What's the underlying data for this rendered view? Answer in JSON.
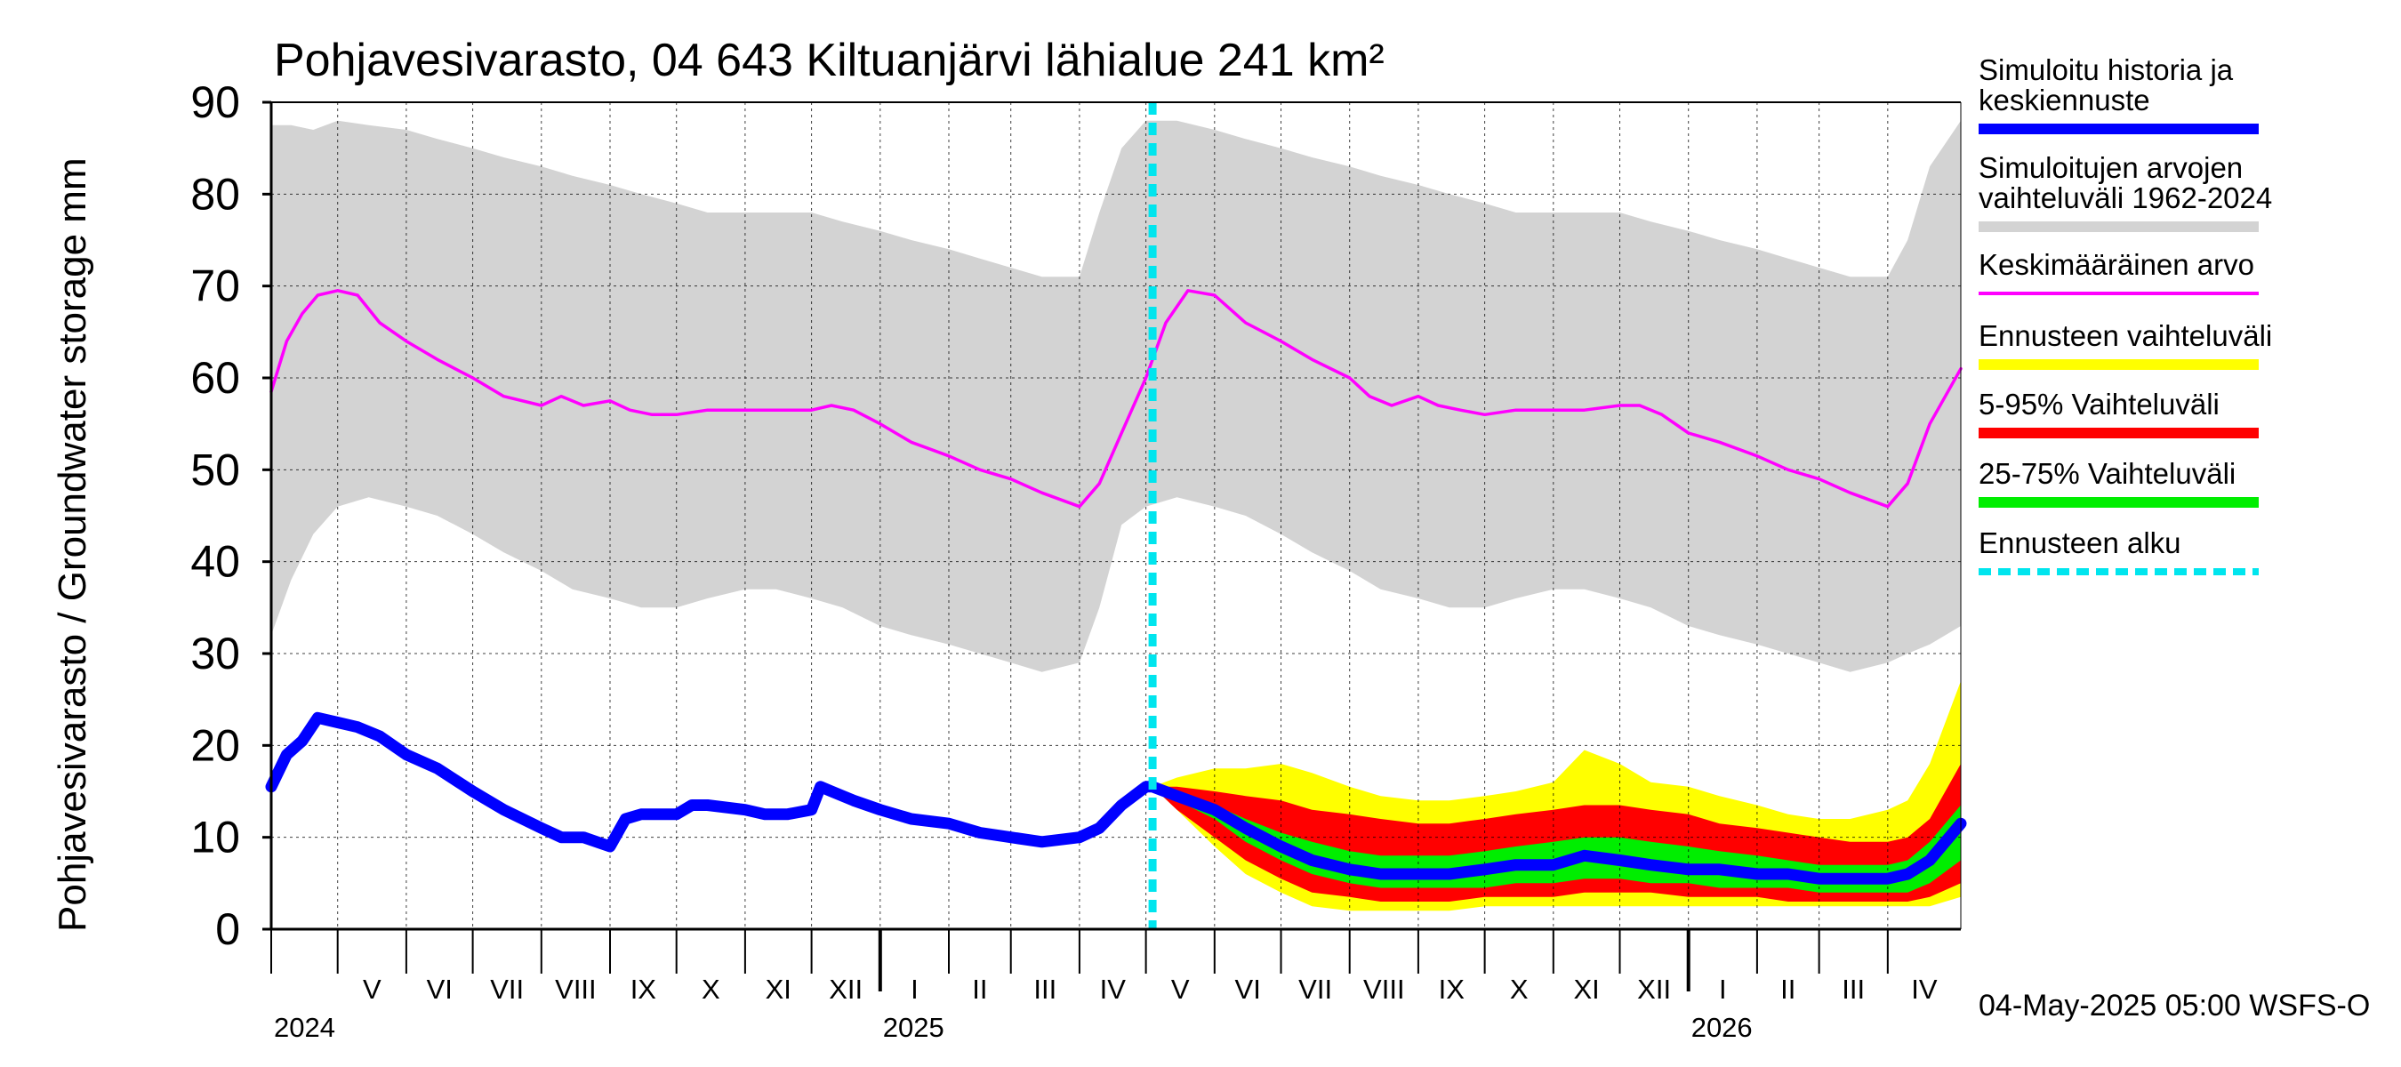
{
  "chart_data": {
    "type": "area",
    "title": "Pohjavesivarasto, 04 643 Kiltuanjärvi lähialue 241 km²",
    "ylabel": "Pohjavesivarasto / Groundwater storage   mm",
    "ylim": [
      0,
      90
    ],
    "yticks": [
      0,
      10,
      20,
      30,
      40,
      50,
      60,
      70,
      80,
      90
    ],
    "xlim": [
      "2024-04-01",
      "2026-05-04"
    ],
    "grid": true,
    "legend_position": "right",
    "forecast_start": "2025-05-04",
    "timestamp_label": "04-May-2025 05:00 WSFS-O",
    "month_labels": [
      {
        "label": "V",
        "date": "2024-05-01"
      },
      {
        "label": "VI",
        "date": "2024-06-01"
      },
      {
        "label": "VII",
        "date": "2024-07-01"
      },
      {
        "label": "VIII",
        "date": "2024-08-01"
      },
      {
        "label": "IX",
        "date": "2024-09-01"
      },
      {
        "label": "X",
        "date": "2024-10-01"
      },
      {
        "label": "XI",
        "date": "2024-11-01"
      },
      {
        "label": "XII",
        "date": "2024-12-01"
      },
      {
        "label": "I",
        "date": "2025-01-01"
      },
      {
        "label": "II",
        "date": "2025-02-01"
      },
      {
        "label": "III",
        "date": "2025-03-01"
      },
      {
        "label": "IV",
        "date": "2025-04-01"
      },
      {
        "label": "V",
        "date": "2025-05-01"
      },
      {
        "label": "VI",
        "date": "2025-06-01"
      },
      {
        "label": "VII",
        "date": "2025-07-01"
      },
      {
        "label": "VIII",
        "date": "2025-08-01"
      },
      {
        "label": "IX",
        "date": "2025-09-01"
      },
      {
        "label": "X",
        "date": "2025-10-01"
      },
      {
        "label": "XI",
        "date": "2025-11-01"
      },
      {
        "label": "XII",
        "date": "2025-12-01"
      },
      {
        "label": "I",
        "date": "2026-01-01"
      },
      {
        "label": "II",
        "date": "2026-02-01"
      },
      {
        "label": "III",
        "date": "2026-03-01"
      },
      {
        "label": "IV",
        "date": "2026-04-01"
      }
    ],
    "year_labels": [
      {
        "label": "2024",
        "date": "2024-04-01"
      },
      {
        "label": "2025",
        "date": "2025-01-01"
      },
      {
        "label": "2026",
        "date": "2026-01-01"
      }
    ],
    "colors": {
      "history": "#0000ff",
      "range": "#d3d3d3",
      "mean": "#ff00ff",
      "forecast_range": "#ffff00",
      "p5_95": "#ff0000",
      "p25_75": "#00ee00",
      "forecast_start": "#00e5ee"
    },
    "legend": [
      {
        "lines": [
          "Simuloitu historia ja",
          "keskiennuste"
        ],
        "color": "#0000ff",
        "style": "thick"
      },
      {
        "lines": [
          "Simuloitujen arvojen",
          "vaihteluväli 1962-2024"
        ],
        "color": "#d3d3d3",
        "style": "thick"
      },
      {
        "lines": [
          "Keskimääräinen arvo"
        ],
        "color": "#ff00ff",
        "style": "thin"
      },
      {
        "lines": [
          "Ennusteen vaihteluväli"
        ],
        "color": "#ffff00",
        "style": "thick"
      },
      {
        "lines": [
          "5-95% Vaihteluväli"
        ],
        "color": "#ff0000",
        "style": "thick"
      },
      {
        "lines": [
          "25-75% Vaihteluväli"
        ],
        "color": "#00ee00",
        "style": "thick"
      },
      {
        "lines": [
          "Ennusteen alku"
        ],
        "color": "#00e5ee",
        "style": "dashed"
      }
    ],
    "series": [
      {
        "name": "Simuloitujen arvojen vaihteluväli 1962-2024",
        "kind": "band",
        "x": [
          "2024-04-01",
          "2024-04-10",
          "2024-04-20",
          "2024-05-01",
          "2024-05-15",
          "2024-06-01",
          "2024-06-15",
          "2024-07-01",
          "2024-07-15",
          "2024-08-01",
          "2024-08-15",
          "2024-09-01",
          "2024-09-15",
          "2024-10-01",
          "2024-10-15",
          "2024-11-01",
          "2024-11-15",
          "2024-12-01",
          "2024-12-15",
          "2025-01-01",
          "2025-01-15",
          "2025-02-01",
          "2025-02-15",
          "2025-03-01",
          "2025-03-15",
          "2025-04-01",
          "2025-04-10",
          "2025-04-20",
          "2025-05-01",
          "2025-05-15",
          "2025-06-01",
          "2025-06-15",
          "2025-07-01",
          "2025-07-15",
          "2025-08-01",
          "2025-08-15",
          "2025-09-01",
          "2025-09-15",
          "2025-10-01",
          "2025-10-15",
          "2025-11-01",
          "2025-11-15",
          "2025-12-01",
          "2025-12-15",
          "2026-01-01",
          "2026-01-15",
          "2026-02-01",
          "2026-02-15",
          "2026-03-01",
          "2026-03-15",
          "2026-04-01",
          "2026-04-10",
          "2026-04-20",
          "2026-05-04"
        ],
        "low": [
          32,
          38,
          43,
          46,
          47,
          46,
          45,
          43,
          41,
          39,
          37,
          36,
          35,
          35,
          36,
          37,
          37,
          36,
          35,
          33,
          32,
          31,
          30,
          29,
          28,
          29,
          35,
          44,
          46,
          47,
          46,
          45,
          43,
          41,
          39,
          37,
          36,
          35,
          35,
          36,
          37,
          37,
          36,
          35,
          33,
          32,
          31,
          30,
          29,
          28,
          29,
          30,
          31,
          33
        ],
        "high": [
          87.5,
          87.5,
          87,
          88,
          87.5,
          87,
          86,
          85,
          84,
          83,
          82,
          81,
          80,
          79,
          78,
          78,
          78,
          78,
          77,
          76,
          75,
          74,
          73,
          72,
          71,
          71,
          78,
          85,
          88,
          88,
          87,
          86,
          85,
          84,
          83,
          82,
          81,
          80,
          79,
          78,
          78,
          78,
          78,
          77,
          76,
          75,
          74,
          73,
          72,
          71,
          71,
          75,
          83,
          88
        ]
      },
      {
        "name": "Keskimääräinen arvo",
        "kind": "line",
        "x": [
          "2024-04-01",
          "2024-04-08",
          "2024-04-15",
          "2024-04-22",
          "2024-05-01",
          "2024-05-10",
          "2024-05-20",
          "2024-06-01",
          "2024-06-15",
          "2024-07-01",
          "2024-07-15",
          "2024-08-01",
          "2024-08-10",
          "2024-08-20",
          "2024-09-01",
          "2024-09-10",
          "2024-09-20",
          "2024-10-01",
          "2024-10-15",
          "2024-11-01",
          "2024-11-15",
          "2024-12-01",
          "2024-12-10",
          "2024-12-20",
          "2025-01-01",
          "2025-01-15",
          "2025-02-01",
          "2025-02-15",
          "2025-03-01",
          "2025-03-15",
          "2025-04-01",
          "2025-04-10",
          "2025-04-20",
          "2025-05-01",
          "2025-05-10",
          "2025-05-20",
          "2025-06-01",
          "2025-06-15",
          "2025-07-01",
          "2025-07-15",
          "2025-08-01",
          "2025-08-10",
          "2025-08-20",
          "2025-09-01",
          "2025-09-10",
          "2025-09-20",
          "2025-10-01",
          "2025-10-15",
          "2025-11-01",
          "2025-11-15",
          "2025-12-01",
          "2025-12-10",
          "2025-12-20",
          "2026-01-01",
          "2026-01-15",
          "2026-02-01",
          "2026-02-15",
          "2026-03-01",
          "2026-03-15",
          "2026-04-01",
          "2026-04-10",
          "2026-04-20",
          "2026-05-04"
        ],
        "values": [
          58.5,
          64,
          67,
          69,
          69.5,
          69,
          66,
          64,
          62,
          60,
          58,
          57,
          58,
          57,
          57.5,
          56.5,
          56,
          56,
          56.5,
          56.5,
          56.5,
          56.5,
          57,
          56.5,
          55,
          53,
          51.5,
          50,
          49,
          47.5,
          46,
          48.5,
          54,
          60,
          66,
          69.5,
          69,
          66,
          64,
          62,
          60,
          58,
          57,
          58,
          57,
          56.5,
          56,
          56.5,
          56.5,
          56.5,
          57,
          57,
          56,
          54,
          53,
          51.5,
          50,
          49,
          47.5,
          46,
          48.5,
          55,
          61
        ]
      },
      {
        "name": "Simuloitu historia ja keskiennuste",
        "kind": "line",
        "x": [
          "2024-04-01",
          "2024-04-08",
          "2024-04-15",
          "2024-04-22",
          "2024-05-01",
          "2024-05-10",
          "2024-05-20",
          "2024-06-01",
          "2024-06-15",
          "2024-07-01",
          "2024-07-15",
          "2024-08-01",
          "2024-08-10",
          "2024-08-20",
          "2024-09-01",
          "2024-09-08",
          "2024-09-15",
          "2024-09-22",
          "2024-10-01",
          "2024-10-08",
          "2024-10-15",
          "2024-11-01",
          "2024-11-10",
          "2024-11-20",
          "2024-12-01",
          "2024-12-05",
          "2024-12-10",
          "2024-12-20",
          "2025-01-01",
          "2025-01-15",
          "2025-02-01",
          "2025-02-15",
          "2025-03-01",
          "2025-03-15",
          "2025-04-01",
          "2025-04-10",
          "2025-04-20",
          "2025-05-01",
          "2025-05-04",
          "2025-05-15",
          "2025-06-01",
          "2025-06-15",
          "2025-07-01",
          "2025-07-15",
          "2025-08-01",
          "2025-08-15",
          "2025-09-01",
          "2025-09-15",
          "2025-10-01",
          "2025-10-15",
          "2025-11-01",
          "2025-11-15",
          "2025-12-01",
          "2025-12-15",
          "2026-01-01",
          "2026-01-15",
          "2026-02-01",
          "2026-02-15",
          "2026-03-01",
          "2026-03-15",
          "2026-04-01",
          "2026-04-10",
          "2026-04-20",
          "2026-05-04"
        ],
        "values": [
          15.5,
          19,
          20.5,
          23,
          22.5,
          22,
          21,
          19,
          17.5,
          15,
          13,
          11,
          10,
          10,
          9,
          12,
          12.5,
          12.5,
          12.5,
          13.5,
          13.5,
          13,
          12.5,
          12.5,
          13,
          15.5,
          15,
          14,
          13,
          12,
          11.5,
          10.5,
          10,
          9.5,
          10,
          11,
          13.5,
          15.5,
          15.5,
          14.5,
          13,
          11,
          9,
          7.5,
          6.5,
          6,
          6,
          6,
          6.5,
          7,
          7,
          8,
          7.5,
          7,
          6.5,
          6.5,
          6,
          6,
          5.5,
          5.5,
          5.5,
          6,
          7.5,
          11.5
        ]
      },
      {
        "name": "Ennusteen vaihteluväli",
        "kind": "band",
        "x": [
          "2025-05-04",
          "2025-05-15",
          "2025-06-01",
          "2025-06-15",
          "2025-07-01",
          "2025-07-15",
          "2025-08-01",
          "2025-08-15",
          "2025-09-01",
          "2025-09-15",
          "2025-10-01",
          "2025-10-15",
          "2025-11-01",
          "2025-11-15",
          "2025-12-01",
          "2025-12-15",
          "2026-01-01",
          "2026-01-15",
          "2026-02-01",
          "2026-02-15",
          "2026-03-01",
          "2026-03-15",
          "2026-04-01",
          "2026-04-10",
          "2026-04-20",
          "2026-05-04"
        ],
        "low": [
          15.5,
          13,
          9,
          6,
          4,
          2.5,
          2,
          2,
          2,
          2,
          2.5,
          2.5,
          2.5,
          2.5,
          2.5,
          2.5,
          2.5,
          2.5,
          2.5,
          2.5,
          2.5,
          2.5,
          2.5,
          2.5,
          2.5,
          3.5
        ],
        "high": [
          15.5,
          16.5,
          17.5,
          17.5,
          18,
          17,
          15.5,
          14.5,
          14,
          14,
          14.5,
          15,
          16,
          19.5,
          18,
          16,
          15.5,
          14.5,
          13.5,
          12.5,
          12,
          12,
          13,
          14,
          18,
          27
        ]
      },
      {
        "name": "5-95% Vaihteluväli",
        "kind": "band",
        "x": [
          "2025-05-04",
          "2025-05-15",
          "2025-06-01",
          "2025-06-15",
          "2025-07-01",
          "2025-07-15",
          "2025-08-01",
          "2025-08-15",
          "2025-09-01",
          "2025-09-15",
          "2025-10-01",
          "2025-10-15",
          "2025-11-01",
          "2025-11-15",
          "2025-12-01",
          "2025-12-15",
          "2026-01-01",
          "2026-01-15",
          "2026-02-01",
          "2026-02-15",
          "2026-03-01",
          "2026-03-15",
          "2026-04-01",
          "2026-04-10",
          "2026-04-20",
          "2026-05-04"
        ],
        "low": [
          15.5,
          13,
          10,
          7.5,
          5.5,
          4,
          3.5,
          3,
          3,
          3,
          3.5,
          3.5,
          3.5,
          4,
          4,
          4,
          3.5,
          3.5,
          3.5,
          3,
          3,
          3,
          3,
          3,
          3.5,
          5
        ],
        "high": [
          15.5,
          15.5,
          15,
          14.5,
          14,
          13,
          12.5,
          12,
          11.5,
          11.5,
          12,
          12.5,
          13,
          13.5,
          13.5,
          13,
          12.5,
          11.5,
          11,
          10.5,
          10,
          9.5,
          9.5,
          10,
          12,
          18
        ]
      },
      {
        "name": "25-75% Vaihteluväli",
        "kind": "band",
        "x": [
          "2025-05-04",
          "2025-05-15",
          "2025-06-01",
          "2025-06-15",
          "2025-07-01",
          "2025-07-15",
          "2025-08-01",
          "2025-08-15",
          "2025-09-01",
          "2025-09-15",
          "2025-10-01",
          "2025-10-15",
          "2025-11-01",
          "2025-11-15",
          "2025-12-01",
          "2025-12-15",
          "2026-01-01",
          "2026-01-15",
          "2026-02-01",
          "2026-02-15",
          "2026-03-01",
          "2026-03-15",
          "2026-04-01",
          "2026-04-10",
          "2026-04-20",
          "2026-05-04"
        ],
        "low": [
          15.5,
          14,
          12,
          9.5,
          7.5,
          6,
          5,
          4.5,
          4.5,
          4.5,
          4.5,
          5,
          5,
          5.5,
          5.5,
          5,
          5,
          4.5,
          4.5,
          4.5,
          4,
          4,
          4,
          4,
          5,
          7.5
        ],
        "high": [
          15.5,
          15,
          13.5,
          12,
          10.5,
          9.5,
          8.5,
          8,
          8,
          8,
          8.5,
          9,
          9.5,
          10,
          10,
          9.5,
          9,
          8.5,
          8,
          7.5,
          7,
          7,
          7,
          7.5,
          9.5,
          13.5
        ]
      }
    ]
  }
}
